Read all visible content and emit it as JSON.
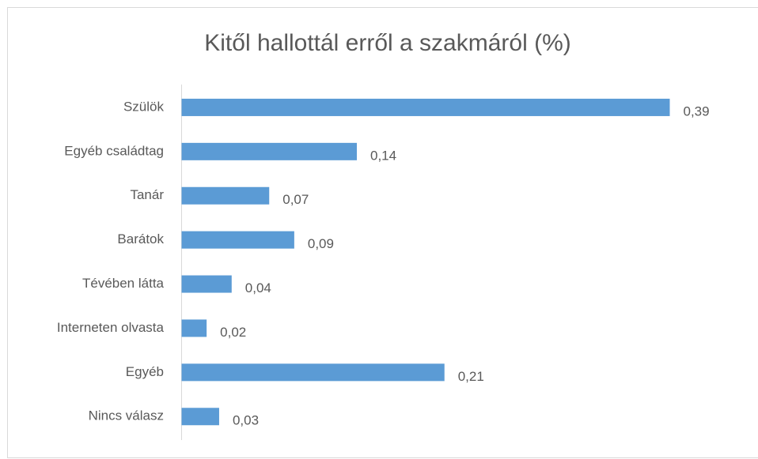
{
  "chart_data": {
    "type": "bar",
    "orientation": "horizontal",
    "title": "Kitől hallottál erről a szakmáról (%)",
    "categories": [
      "Szülök",
      "Egyéb családtag",
      "Tanár",
      "Barátok",
      "Tévében látta",
      "Interneten olvasta",
      "Egyéb",
      "Nincs válasz"
    ],
    "values": [
      0.39,
      0.14,
      0.07,
      0.09,
      0.04,
      0.02,
      0.21,
      0.03
    ],
    "value_labels": [
      "0,39",
      "0,14",
      "0,07",
      "0,09",
      "0,04",
      "0,02",
      "0,21",
      "0,03"
    ],
    "color": "#5b9bd5"
  }
}
